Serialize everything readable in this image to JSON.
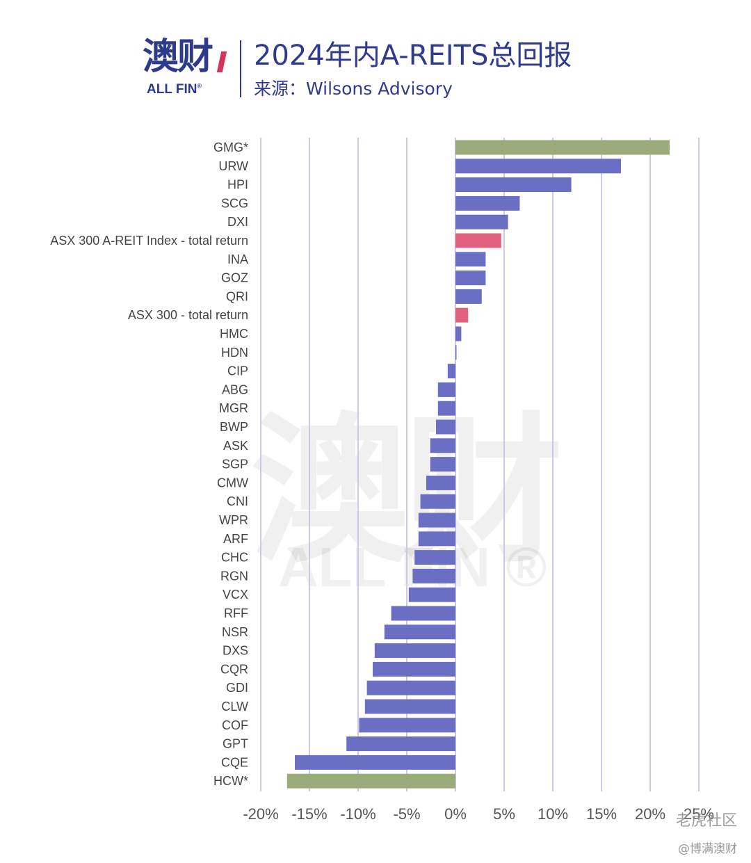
{
  "header": {
    "logo_cn": "澳财",
    "logo_en": "ALL FIN",
    "logo_reg": "®",
    "title": "2024年内A-REITS总回报",
    "subtitle": "来源：Wilsons Advisory"
  },
  "watermark": {
    "cn": "澳财",
    "en": "ALL FIN ®"
  },
  "footer": {
    "community": "老虎社区",
    "author": "@博满澳财"
  },
  "colors": {
    "default_bar": "#6b6fc4",
    "index_bar": "#e0607e",
    "highlight_bar": "#9aab7a",
    "gridline": "#ccc9e6",
    "brand": "#2e3a8c"
  },
  "chart_data": {
    "type": "bar",
    "orientation": "horizontal",
    "title": "2024年内A-REITS总回报",
    "xlabel": "",
    "ylabel": "",
    "xlim": [
      -20,
      25
    ],
    "x_ticks": [
      -20,
      -15,
      -10,
      -5,
      0,
      5,
      10,
      15,
      20,
      25
    ],
    "x_tick_labels": [
      "-20%",
      "-15%",
      "-10%",
      "-5%",
      "0%",
      "5%",
      "10%",
      "15%",
      "20%",
      "25%"
    ],
    "grid": true,
    "categories": [
      "GMG*",
      "URW",
      "HPI",
      "SCG",
      "DXI",
      "ASX 300 A-REIT Index - total return",
      "INA",
      "GOZ",
      "QRI",
      "ASX 300 - total return",
      "HMC",
      "HDN",
      "CIP",
      "ABG",
      "MGR",
      "BWP",
      "ASK",
      "SGP",
      "CMW",
      "CNI",
      "WPR",
      "ARF",
      "CHC",
      "RGN",
      "VCX",
      "RFF",
      "NSR",
      "DXS",
      "CQR",
      "GDI",
      "CLW",
      "COF",
      "GPT",
      "CQE",
      "HCW*"
    ],
    "values": [
      22.0,
      17.0,
      11.9,
      6.6,
      5.4,
      4.7,
      3.1,
      3.1,
      2.7,
      1.3,
      0.6,
      0.1,
      -0.8,
      -1.8,
      -1.8,
      -2.0,
      -2.6,
      -2.6,
      -3.0,
      -3.6,
      -3.8,
      -3.8,
      -4.2,
      -4.4,
      -4.8,
      -6.6,
      -7.3,
      -8.3,
      -8.5,
      -9.1,
      -9.3,
      -9.9,
      -11.2,
      -16.5,
      -17.3
    ],
    "bar_kind": [
      "highlight",
      "default",
      "default",
      "default",
      "default",
      "index",
      "default",
      "default",
      "default",
      "index",
      "default",
      "default",
      "default",
      "default",
      "default",
      "default",
      "default",
      "default",
      "default",
      "default",
      "default",
      "default",
      "default",
      "default",
      "default",
      "default",
      "default",
      "default",
      "default",
      "default",
      "default",
      "default",
      "default",
      "default",
      "highlight"
    ],
    "unit": "%"
  }
}
